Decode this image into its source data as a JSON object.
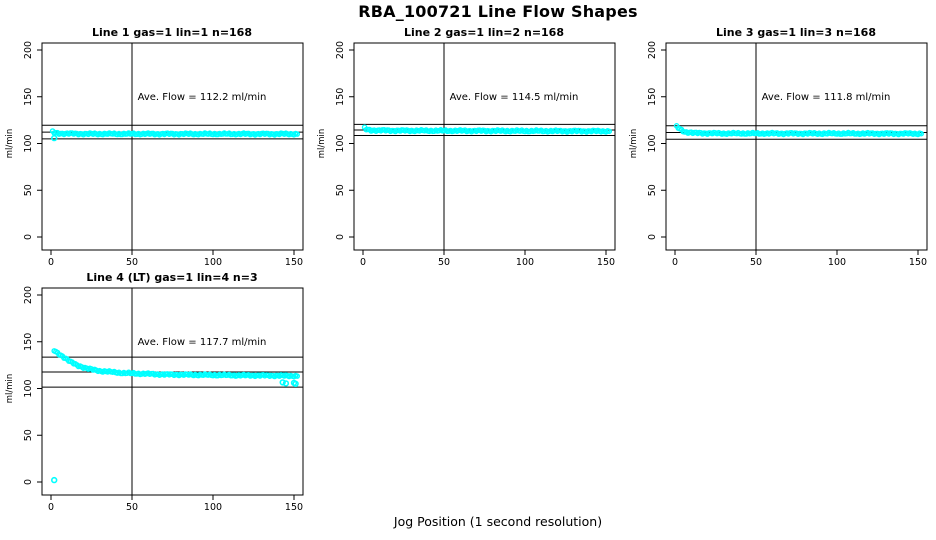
{
  "page": {
    "title": "RBA_100721  Line Flow Shapes",
    "xlabel": "Jog Position (1 second resolution)",
    "ylabel": "ml/min"
  },
  "colors": {
    "marker": "#00FFFF",
    "axis": "#000000",
    "background": "#FFFFFF"
  },
  "chart_data": [
    {
      "type": "scatter",
      "title": "Line 1 gas=1 lin=1 n=168",
      "annotation": "Ave. Flow =  112.2  ml/min",
      "ave_flow": 112.2,
      "n": 168,
      "x_ticks": [
        0,
        50,
        100,
        150
      ],
      "y_ticks": [
        0,
        50,
        100,
        150,
        200
      ],
      "xlim": [
        -6,
        161
      ],
      "ylim": [
        -14,
        208
      ],
      "vline_x": 50,
      "hlines": [
        119.5,
        112.2,
        105.0
      ],
      "x_start": 1,
      "x_end": 152,
      "curve": [
        [
          1,
          112.5
        ],
        [
          2,
          111.5
        ],
        [
          5,
          110.8
        ],
        [
          20,
          110.3
        ],
        [
          152,
          110.2
        ]
      ],
      "outliers": [
        [
          2,
          105.8
        ]
      ]
    },
    {
      "type": "scatter",
      "title": "Line 2 gas=1 lin=2 n=168",
      "annotation": "Ave. Flow =  114.5  ml/min",
      "ave_flow": 114.5,
      "n": 168,
      "x_ticks": [
        0,
        50,
        100,
        150
      ],
      "y_ticks": [
        0,
        50,
        100,
        150,
        200
      ],
      "xlim": [
        -6,
        161
      ],
      "ylim": [
        -14,
        208
      ],
      "vline_x": 50,
      "hlines": [
        120.5,
        114.5,
        108.5
      ],
      "x_start": 1,
      "x_end": 152,
      "curve": [
        [
          1,
          116.5
        ],
        [
          2,
          115.0
        ],
        [
          5,
          114.2
        ],
        [
          20,
          113.8
        ],
        [
          152,
          113.2
        ]
      ],
      "outliers": []
    },
    {
      "type": "scatter",
      "title": "Line 3 gas=1 lin=3 n=168",
      "annotation": "Ave. Flow =  111.8  ml/min",
      "ave_flow": 111.8,
      "n": 168,
      "x_ticks": [
        0,
        50,
        100,
        150
      ],
      "y_ticks": [
        0,
        50,
        100,
        150,
        200
      ],
      "xlim": [
        -6,
        161
      ],
      "ylim": [
        -14,
        208
      ],
      "vline_x": 50,
      "hlines": [
        119.0,
        111.8,
        104.5
      ],
      "x_start": 1,
      "x_end": 152,
      "curve": [
        [
          1,
          118.0
        ],
        [
          3,
          115.5
        ],
        [
          6,
          112.5
        ],
        [
          12,
          111.2
        ],
        [
          30,
          110.8
        ],
        [
          152,
          110.6
        ]
      ],
      "outliers": []
    },
    {
      "type": "scatter",
      "title": "Line 4 (LT) gas=1 lin=4 n=3",
      "annotation": "Ave. Flow =  117.7  ml/min",
      "ave_flow": 117.7,
      "n": 3,
      "x_ticks": [
        0,
        50,
        100,
        150
      ],
      "y_ticks": [
        0,
        50,
        100,
        150,
        200
      ],
      "xlim": [
        -6,
        161
      ],
      "ylim": [
        -14,
        208
      ],
      "vline_x": 50,
      "hlines": [
        133.5,
        117.7,
        101.5
      ],
      "x_start": 2,
      "x_end": 152,
      "curve": [
        [
          2,
          140.5
        ],
        [
          4,
          138.0
        ],
        [
          8,
          133.5
        ],
        [
          12,
          128.5
        ],
        [
          16,
          125.0
        ],
        [
          22,
          121.5
        ],
        [
          30,
          118.8
        ],
        [
          45,
          116.5
        ],
        [
          70,
          115.0
        ],
        [
          110,
          114.2
        ],
        [
          140,
          113.8
        ],
        [
          152,
          113.4
        ]
      ],
      "outliers": [
        [
          2,
          2
        ],
        [
          143,
          106.5
        ],
        [
          145,
          105.5
        ],
        [
          150,
          106.0
        ],
        [
          151,
          105.0
        ]
      ]
    }
  ]
}
